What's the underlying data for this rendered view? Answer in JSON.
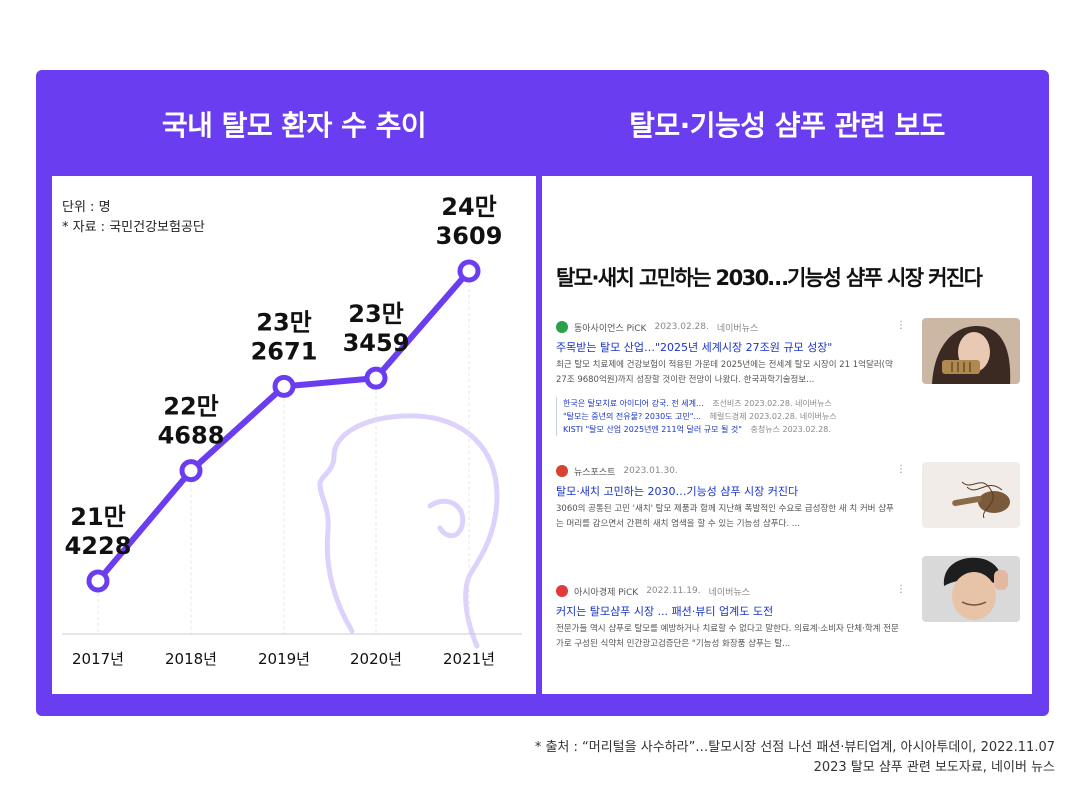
{
  "left_heading": "국내 탈모 환자 수 추이",
  "right_heading": "탈모·기능성 샴푸 관련 보도",
  "chart_note_unit": "단위 : 명",
  "chart_note_source": "* 자료 : 국민건강보험공단",
  "chart_data": {
    "type": "line",
    "title": "국내 탈모 환자 수 추이",
    "categories": [
      "2017년",
      "2018년",
      "2019년",
      "2020년",
      "2021년"
    ],
    "values": [
      214228,
      224688,
      232671,
      233459,
      243609
    ],
    "data_labels": [
      [
        "21만",
        "4228"
      ],
      [
        "22만",
        "4688"
      ],
      [
        "23만",
        "2671"
      ],
      [
        "23만",
        "3459"
      ],
      [
        "24만",
        "3609"
      ]
    ],
    "xlabel": "",
    "ylabel": "",
    "grid": false,
    "line_color": "#6b3df0"
  },
  "news": {
    "headline": "탈모·새치 고민하는 2030…기능성 샴푸 시장 커진다",
    "more_icon": "⋮",
    "cards": [
      {
        "source": "동아사이언스 PiCK",
        "date": "2023.02.28.",
        "via": "네이버뉴스",
        "title": "주목받는 탈모 산업…\"2025년 세계시장 27조원 규모 성장\"",
        "snippet": "최근 탈모 치료제에 건강보험이 적용된 가운데 2025년에는 전세계 탈모 시장이 21 1억달러(약 27조 9680억원)까지 성장할 것이란 전망이 나왔다. 한국과학기술정보...",
        "logo_color": "#2aa04a",
        "related": [
          {
            "title": "한국은 탈모치료 아이디어 강국. 전 세계...",
            "meta": "조선비즈   2023.02.28.   네이버뉴스"
          },
          {
            "title": "\"탈모는 중년의 전유물? 2030도 고민\"...",
            "meta": "헤럴드경제   2023.02.28.   네이버뉴스"
          },
          {
            "title": "KISTI \"탈모 산업 2025년엔 211억 달러 규모 될 것\"",
            "meta": "충청뉴스   2023.02.28."
          }
        ]
      },
      {
        "source": "뉴스포스트",
        "date": "2023.01.30.",
        "via": "",
        "title": "탈모·새치 고민하는 2030…기능성 샴푸 시장 커진다",
        "snippet": "3060의 공통된 고민 '새치' 탈모 제품과 함께 지난해 폭발적인 수요로 급성장한 새 치 커버 샴푸는 머리를 감으면서 간편히 새치 염색을 할 수 있는 기능성 샴푸다. ...",
        "logo_color": "#d8432f",
        "related": []
      },
      {
        "source": "아시아경제 PiCK",
        "date": "2022.11.19.",
        "via": "네이버뉴스",
        "title": "커지는 탈모샴푸 시장 ... 패션·뷰티 업계도 도전",
        "snippet": "전문가들 역시 샴푸로 탈모를 예방하거나 치료할 수 없다고 말한다. 의료계·소비자 단체·학계 전문가로 구성된 식약처 민간광고검증단은 \"기능성 화장품 샴푸는 탈...",
        "logo_color": "#e23a3a",
        "related": []
      }
    ]
  },
  "footnote_line1": "* 출처 : “머리털을 사수하라”…탈모시장 선점 나선 패션·뷰티업계, 아시아투데이, 2022.11.07",
  "footnote_line2": "2023 탈모 샴푸 관련 보도자료, 네이버 뉴스"
}
